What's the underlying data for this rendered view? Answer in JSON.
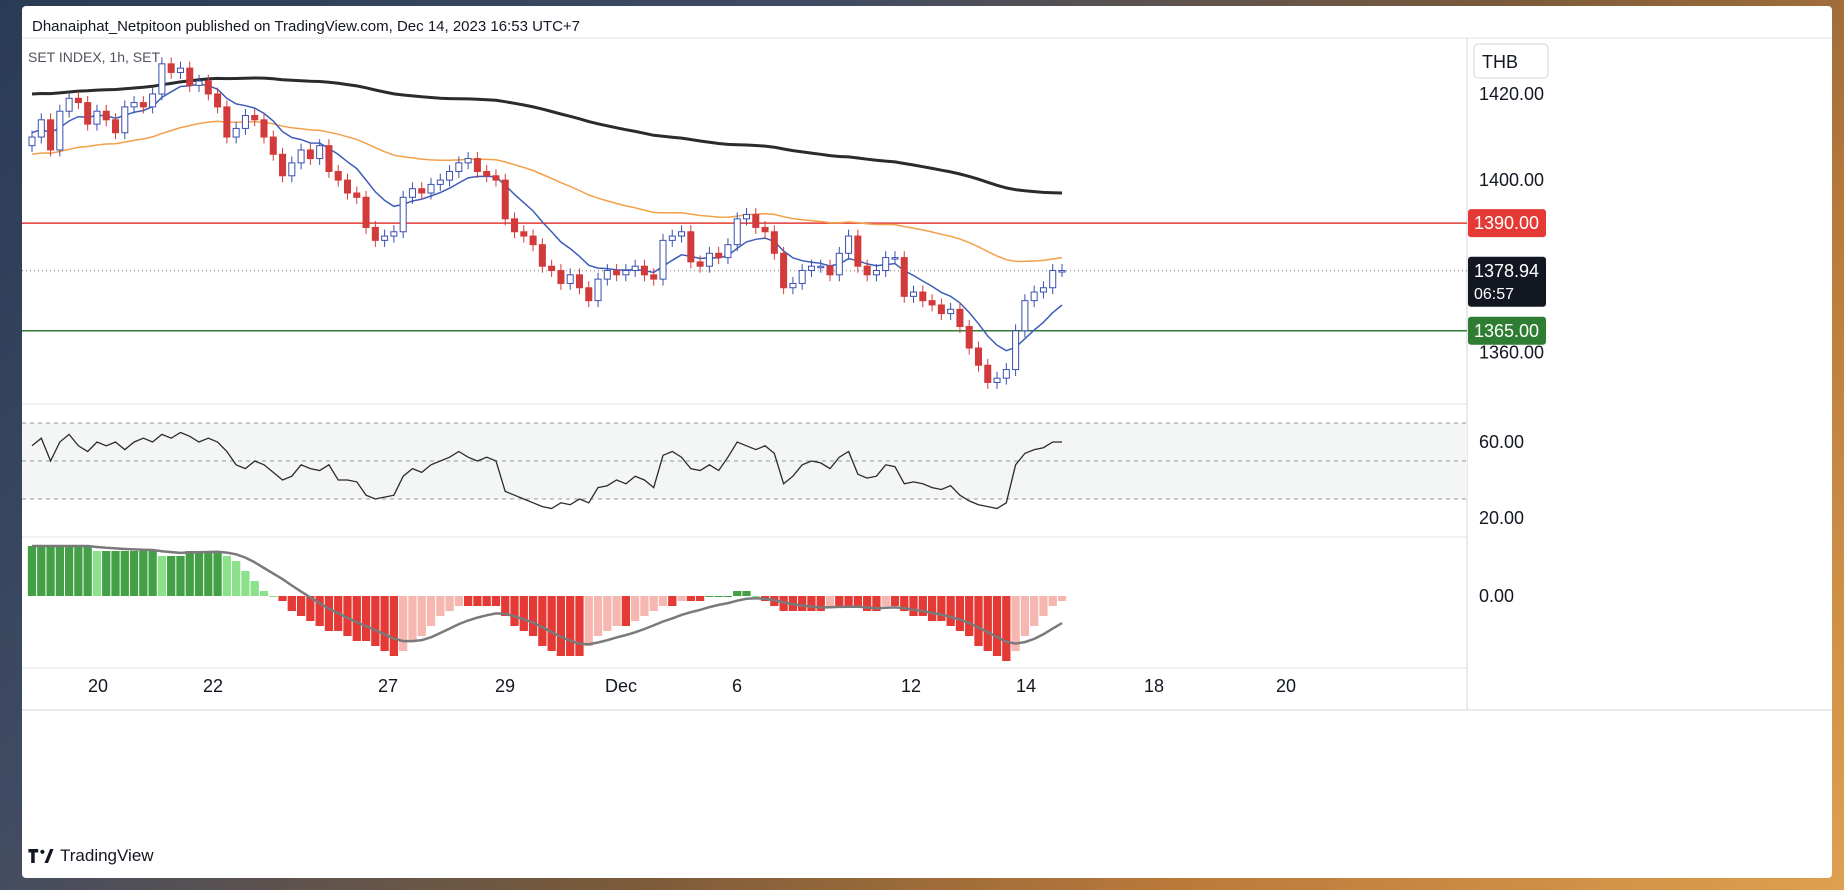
{
  "publisher_line": "Dhanaiphat_Netpitoon published on TradingView.com, Dec 14, 2023 16:53 UTC+7",
  "brand": "TradingView",
  "colors": {
    "bull_fill": "#ffffff",
    "bull_border": "#3a4fb0",
    "bear": "#d23b3b",
    "ema_short": "#3f5db8",
    "ema_mid": "#f2a04a",
    "ema_long": "#2b2b2b",
    "resistance": "#e53935",
    "support": "#2e7d32",
    "hist_dark_green": "#43a047",
    "hist_light_green": "#8be28b",
    "hist_dark_red": "#e53935",
    "hist_light_red": "#f5b7b0",
    "signal_line": "#7a7a7a",
    "rsi_line": "#2b2b2b"
  },
  "chart_data": {
    "type": "candlestick",
    "symbol_label": "SET INDEX, 1h, SET",
    "currency": "THB",
    "price_axis": {
      "range": [
        1348,
        1433
      ],
      "ticks": [
        "1420.00",
        "1400.00",
        "1360.00"
      ]
    },
    "horizontal_lines": [
      {
        "name": "resistance",
        "value": 1390.0,
        "label": "1390.00"
      },
      {
        "name": "support",
        "value": 1365.0,
        "label": "1365.00"
      }
    ],
    "last_price": {
      "value": 1378.94,
      "label": "1378.94",
      "countdown": "06:57"
    },
    "x_ticks": [
      "20",
      "22",
      "27",
      "29",
      "Dec",
      "6",
      "12",
      "14",
      "18",
      "20"
    ],
    "candle_closes": [
      1410,
      1414,
      1407,
      1416,
      1419,
      1418,
      1413,
      1416,
      1414,
      1411,
      1417,
      1418,
      1417,
      1420,
      1427,
      1425,
      1426,
      1422,
      1423,
      1420,
      1417,
      1410,
      1412,
      1415,
      1414,
      1410,
      1406,
      1401,
      1404,
      1407,
      1405,
      1408,
      1402,
      1400,
      1397,
      1396,
      1389,
      1386,
      1387,
      1388,
      1396,
      1398,
      1397,
      1399,
      1400,
      1402,
      1404,
      1405,
      1402,
      1401,
      1400,
      1391,
      1388,
      1387,
      1385,
      1380,
      1379,
      1376,
      1378,
      1375,
      1372,
      1377,
      1379,
      1378,
      1379,
      1380,
      1378,
      1377,
      1386,
      1387,
      1388,
      1381,
      1380,
      1383,
      1382,
      1385,
      1391,
      1392,
      1389,
      1388,
      1383,
      1375,
      1376,
      1379,
      1380,
      1380,
      1378,
      1383,
      1387,
      1380,
      1378,
      1379,
      1382,
      1382,
      1373,
      1374,
      1372,
      1371,
      1369,
      1370,
      1366,
      1361,
      1357,
      1353,
      1354,
      1356,
      1365,
      1372,
      1374,
      1375,
      1379,
      1379
    ],
    "ema_short": {
      "start": 1411,
      "end": 1371
    },
    "ema_mid": {
      "start": 1406,
      "end": 1382
    },
    "ema_long": {
      "start": 1420,
      "end": 1397
    },
    "rsi": {
      "ticks": [
        "60.00",
        "20.00"
      ],
      "upper_band": 70,
      "mid_band": 50,
      "lower_band": 30,
      "values": [
        58,
        62,
        50,
        60,
        64,
        58,
        55,
        60,
        58,
        60,
        56,
        60,
        62,
        60,
        64,
        62,
        65,
        63,
        60,
        62,
        60,
        55,
        48,
        46,
        50,
        48,
        44,
        40,
        42,
        48,
        46,
        45,
        48,
        40,
        40,
        39,
        32,
        30,
        31,
        32,
        42,
        46,
        44,
        48,
        50,
        52,
        55,
        52,
        50,
        52,
        50,
        34,
        32,
        30,
        28,
        26,
        25,
        28,
        27,
        30,
        28,
        36,
        37,
        40,
        38,
        42,
        40,
        36,
        53,
        55,
        52,
        46,
        45,
        48,
        45,
        52,
        60,
        58,
        56,
        58,
        54,
        38,
        42,
        48,
        50,
        49,
        46,
        52,
        55,
        43,
        41,
        42,
        48,
        47,
        38,
        39,
        38,
        36,
        35,
        37,
        32,
        29,
        27,
        26,
        25,
        28,
        48,
        54,
        56,
        57,
        60,
        60
      ]
    },
    "histogram": {
      "zero_label": "0.00",
      "values": [
        10,
        10,
        10,
        10,
        10,
        10,
        10,
        9,
        9,
        9,
        9,
        9,
        9,
        9,
        8,
        8,
        8,
        9,
        9,
        9,
        9,
        8,
        7,
        5,
        3,
        1,
        0,
        -1,
        -3,
        -4,
        -5,
        -6,
        -7,
        -7,
        -8,
        -9,
        -9,
        -10,
        -11,
        -12,
        -11,
        -9,
        -8,
        -6,
        -4,
        -3,
        -2,
        -2,
        -2,
        -2,
        -2,
        -4,
        -6,
        -7,
        -8,
        -10,
        -11,
        -12,
        -12,
        -12,
        -10,
        -8,
        -7,
        -6,
        -6,
        -5,
        -4,
        -3,
        -2,
        -2,
        -1,
        -1,
        -1,
        0,
        0,
        0,
        1,
        1,
        0,
        -1,
        -2,
        -3,
        -3,
        -3,
        -3,
        -3,
        -2,
        -2,
        -2,
        -2,
        -3,
        -3,
        -2,
        -2,
        -3,
        -4,
        -4,
        -5,
        -5,
        -6,
        -7,
        -8,
        -10,
        -11,
        -12,
        -13,
        -11,
        -8,
        -6,
        -4,
        -2,
        -1
      ],
      "signal": {
        "start": 8,
        "end": -4
      }
    }
  }
}
